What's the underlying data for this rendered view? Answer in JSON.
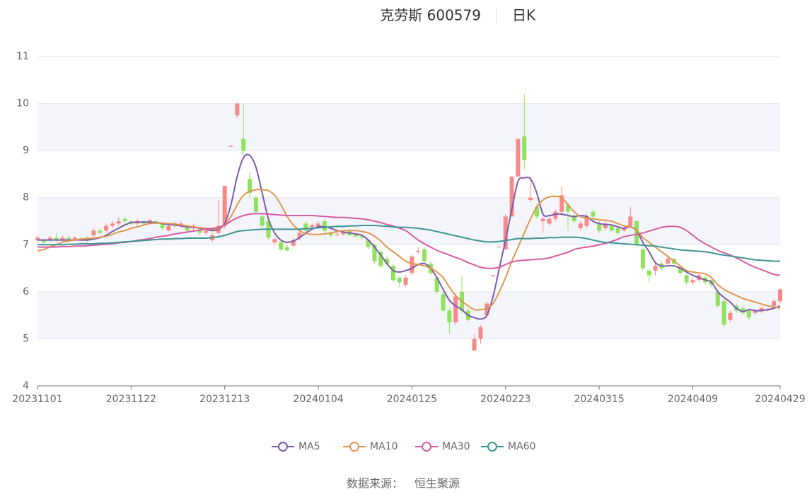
{
  "chart_data": {
    "type": "candlestick",
    "title": "克劳斯 600579",
    "subtitle": "日K",
    "source_label": "数据来源：",
    "source": "恒生聚源",
    "categories": [
      "20231101",
      null,
      null,
      null,
      null,
      null,
      null,
      null,
      null,
      null,
      null,
      null,
      null,
      null,
      null,
      "20231122",
      null,
      null,
      null,
      null,
      null,
      null,
      null,
      null,
      null,
      null,
      null,
      null,
      null,
      null,
      "20231213",
      null,
      null,
      null,
      null,
      null,
      null,
      null,
      null,
      null,
      null,
      null,
      null,
      null,
      null,
      "20240104",
      null,
      null,
      null,
      null,
      null,
      null,
      null,
      null,
      null,
      null,
      null,
      null,
      null,
      null,
      "20240125",
      null,
      null,
      null,
      null,
      null,
      null,
      null,
      null,
      null,
      null,
      null,
      null,
      null,
      null,
      "20240223",
      null,
      null,
      null,
      null,
      null,
      null,
      null,
      null,
      null,
      null,
      null,
      null,
      null,
      null,
      "20240315",
      null,
      null,
      null,
      null,
      null,
      null,
      null,
      null,
      null,
      null,
      null,
      null,
      null,
      null,
      "20240409",
      null,
      null,
      null,
      null,
      null,
      null,
      null,
      null,
      null,
      null,
      null,
      null,
      null,
      "20240429"
    ],
    "candles": [
      [
        7.1,
        7.15,
        7.05,
        7.2
      ],
      [
        7.1,
        7.05,
        7.0,
        7.12
      ],
      [
        7.1,
        7.15,
        7.05,
        7.2
      ],
      [
        7.15,
        7.1,
        7.05,
        7.25
      ],
      [
        7.1,
        7.15,
        7.05,
        7.2
      ],
      [
        7.15,
        7.12,
        7.08,
        7.2
      ],
      [
        7.12,
        7.15,
        7.1,
        7.18
      ],
      [
        7.1,
        7.12,
        7.05,
        7.15
      ],
      [
        7.15,
        7.1,
        7.05,
        7.18
      ],
      [
        7.2,
        7.3,
        7.15,
        7.35
      ],
      [
        7.3,
        7.25,
        7.2,
        7.35
      ],
      [
        7.3,
        7.4,
        7.25,
        7.45
      ],
      [
        7.4,
        7.45,
        7.35,
        7.5
      ],
      [
        7.45,
        7.5,
        7.4,
        7.58
      ],
      [
        7.55,
        7.5,
        7.45,
        7.6
      ],
      [
        7.5,
        7.45,
        7.4,
        7.52
      ],
      [
        7.45,
        7.5,
        7.42,
        7.55
      ],
      [
        7.5,
        7.45,
        7.4,
        7.52
      ],
      [
        7.48,
        7.52,
        7.45,
        7.55
      ],
      [
        7.5,
        7.45,
        7.42,
        7.52
      ],
      [
        7.45,
        7.35,
        7.3,
        7.48
      ],
      [
        7.3,
        7.4,
        7.28,
        7.45
      ],
      [
        7.45,
        7.4,
        7.35,
        7.5
      ],
      [
        7.4,
        7.45,
        7.35,
        7.5
      ],
      [
        7.38,
        7.3,
        7.25,
        7.4
      ],
      [
        7.35,
        7.4,
        7.3,
        7.45
      ],
      [
        7.3,
        7.25,
        7.2,
        7.35
      ],
      [
        7.25,
        7.3,
        7.2,
        7.35
      ],
      [
        7.1,
        7.2,
        7.05,
        7.25
      ],
      [
        7.25,
        7.4,
        7.2,
        7.95
      ],
      [
        7.4,
        8.25,
        7.35,
        8.25
      ],
      [
        9.08,
        9.1,
        9.08,
        9.12
      ],
      [
        9.75,
        10.0,
        9.7,
        10.02
      ],
      [
        9.25,
        9.0,
        8.9,
        10.0
      ],
      [
        8.4,
        8.1,
        8.0,
        8.55
      ],
      [
        8.0,
        7.7,
        7.65,
        8.05
      ],
      [
        7.6,
        7.4,
        7.35,
        7.65
      ],
      [
        7.5,
        7.15,
        7.1,
        7.55
      ],
      [
        7.05,
        7.12,
        7.0,
        7.15
      ],
      [
        7.05,
        6.9,
        6.85,
        7.1
      ],
      [
        6.95,
        6.88,
        6.85,
        7.0
      ],
      [
        6.98,
        7.1,
        6.95,
        7.15
      ],
      [
        7.15,
        7.25,
        7.1,
        7.3
      ],
      [
        7.45,
        7.3,
        7.25,
        7.5
      ],
      [
        7.38,
        7.42,
        7.35,
        7.45
      ],
      [
        7.38,
        7.45,
        7.35,
        7.5
      ],
      [
        7.5,
        7.3,
        7.25,
        7.55
      ],
      [
        7.25,
        7.2,
        7.15,
        7.3
      ],
      [
        7.2,
        7.22,
        7.18,
        7.28
      ],
      [
        7.22,
        7.28,
        7.2,
        7.3
      ],
      [
        7.3,
        7.2,
        7.18,
        7.35
      ],
      [
        7.22,
        7.18,
        7.15,
        7.25
      ],
      [
        7.18,
        7.15,
        7.1,
        7.22
      ],
      [
        7.1,
        6.95,
        6.9,
        7.12
      ],
      [
        7.0,
        6.65,
        6.6,
        7.02
      ],
      [
        6.85,
        6.55,
        6.5,
        6.9
      ],
      [
        6.7,
        6.6,
        6.55,
        6.75
      ],
      [
        6.55,
        6.25,
        6.2,
        6.6
      ],
      [
        6.3,
        6.2,
        6.1,
        6.32
      ],
      [
        6.15,
        6.3,
        6.1,
        6.35
      ],
      [
        6.4,
        6.75,
        6.35,
        6.8
      ],
      [
        6.85,
        6.87,
        6.8,
        6.95
      ],
      [
        6.9,
        6.65,
        6.6,
        6.95
      ],
      [
        6.6,
        6.4,
        6.35,
        6.65
      ],
      [
        6.3,
        6.0,
        5.95,
        6.32
      ],
      [
        5.95,
        5.6,
        5.55,
        6.0
      ],
      [
        5.6,
        5.35,
        5.1,
        5.65
      ],
      [
        5.35,
        5.9,
        5.3,
        5.95
      ],
      [
        6.0,
        5.6,
        5.55,
        6.35
      ],
      [
        5.6,
        5.4,
        5.35,
        5.65
      ],
      [
        4.75,
        5.0,
        4.75,
        5.1
      ],
      [
        5.0,
        5.25,
        4.9,
        5.3
      ],
      [
        5.5,
        5.75,
        5.45,
        5.8
      ],
      [
        6.33,
        6.35,
        6.32,
        6.36
      ],
      [
        6.95,
        6.96,
        6.94,
        6.97
      ],
      [
        6.9,
        7.6,
        6.9,
        7.65
      ],
      [
        7.6,
        8.45,
        7.6,
        8.45
      ],
      [
        8.45,
        9.25,
        8.45,
        9.25
      ],
      [
        9.3,
        8.8,
        8.6,
        10.2
      ],
      [
        7.95,
        8.0,
        7.9,
        8.45
      ],
      [
        7.8,
        7.6,
        7.55,
        7.85
      ],
      [
        7.5,
        7.55,
        7.25,
        7.6
      ],
      [
        7.45,
        7.55,
        7.4,
        7.6
      ],
      [
        7.55,
        7.7,
        7.5,
        7.75
      ],
      [
        7.7,
        8.05,
        7.65,
        8.25
      ],
      [
        7.85,
        7.7,
        7.3,
        7.9
      ],
      [
        7.6,
        7.5,
        7.45,
        7.65
      ],
      [
        7.35,
        7.45,
        7.3,
        7.5
      ],
      [
        7.4,
        7.6,
        7.35,
        7.65
      ],
      [
        7.7,
        7.6,
        7.55,
        7.75
      ],
      [
        7.45,
        7.3,
        7.25,
        7.5
      ],
      [
        7.35,
        7.45,
        7.3,
        7.5
      ],
      [
        7.4,
        7.3,
        7.28,
        7.42
      ],
      [
        7.35,
        7.25,
        7.2,
        7.38
      ],
      [
        7.3,
        7.35,
        7.28,
        7.4
      ],
      [
        7.4,
        7.6,
        7.35,
        7.8
      ],
      [
        7.5,
        7.0,
        6.95,
        7.52
      ],
      [
        6.9,
        6.5,
        6.45,
        6.95
      ],
      [
        6.45,
        6.35,
        6.2,
        6.5
      ],
      [
        6.45,
        6.55,
        6.35,
        6.6
      ],
      [
        6.6,
        6.5,
        6.45,
        6.65
      ],
      [
        6.6,
        6.7,
        6.55,
        6.75
      ],
      [
        6.7,
        6.6,
        6.55,
        6.72
      ],
      [
        6.5,
        6.4,
        6.35,
        6.55
      ],
      [
        6.35,
        6.2,
        6.15,
        6.4
      ],
      [
        6.2,
        6.25,
        6.15,
        6.3
      ],
      [
        6.25,
        6.35,
        6.2,
        6.4
      ],
      [
        6.3,
        6.2,
        6.15,
        6.35
      ],
      [
        6.25,
        6.15,
        6.1,
        6.3
      ],
      [
        6.0,
        5.7,
        5.65,
        6.05
      ],
      [
        5.8,
        5.3,
        5.25,
        5.85
      ],
      [
        5.4,
        5.55,
        5.35,
        5.6
      ],
      [
        5.7,
        5.6,
        5.55,
        5.75
      ],
      [
        5.65,
        5.55,
        5.5,
        5.7
      ],
      [
        5.6,
        5.45,
        5.4,
        5.62
      ],
      [
        5.55,
        5.6,
        5.5,
        5.62
      ],
      [
        5.6,
        5.65,
        5.55,
        5.68
      ],
      [
        5.6,
        5.62,
        5.58,
        5.65
      ],
      [
        5.7,
        5.8,
        5.65,
        5.85
      ],
      [
        5.8,
        6.05,
        5.75,
        6.08
      ]
    ],
    "up_color": "#f78a89",
    "down_color": "#8fe25c",
    "series": [
      {
        "name": "MA5",
        "color": "#7a5caa",
        "values": [
          7.1,
          7.1,
          7.1,
          7.1,
          7.1,
          7.1,
          7.1,
          7.1,
          7.1,
          7.12,
          7.15,
          7.2,
          7.28,
          7.35,
          7.42,
          7.47,
          7.48,
          7.48,
          7.48,
          7.47,
          7.45,
          7.43,
          7.42,
          7.4,
          7.38,
          7.37,
          7.35,
          7.33,
          7.3,
          7.33,
          7.45,
          7.85,
          8.45,
          8.85,
          8.9,
          8.65,
          8.1,
          7.55,
          7.25,
          7.1,
          7.05,
          7.08,
          7.15,
          7.25,
          7.33,
          7.38,
          7.38,
          7.35,
          7.3,
          7.27,
          7.25,
          7.23,
          7.2,
          7.1,
          6.95,
          6.78,
          6.6,
          6.45,
          6.42,
          6.45,
          6.5,
          6.58,
          6.6,
          6.5,
          6.3,
          6.05,
          5.82,
          5.7,
          5.62,
          5.5,
          5.45,
          5.42,
          5.5,
          5.9,
          6.5,
          7.1,
          7.75,
          8.35,
          8.42,
          8.4,
          8.1,
          7.65,
          7.62,
          7.65,
          7.65,
          7.62,
          7.6,
          7.62,
          7.6,
          7.5,
          7.45,
          7.43,
          7.42,
          7.38,
          7.35,
          7.38,
          7.3,
          7.05,
          6.85,
          6.62,
          6.55,
          6.55,
          6.55,
          6.5,
          6.42,
          6.35,
          6.3,
          6.25,
          6.2,
          6.0,
          5.88,
          5.78,
          5.65,
          5.58,
          5.62,
          5.6,
          5.6,
          5.62,
          5.65,
          5.7
        ]
      },
      {
        "name": "MA10",
        "color": "#e0964f",
        "values": [
          6.87,
          6.9,
          6.95,
          7.0,
          7.05,
          7.08,
          7.1,
          7.12,
          7.13,
          7.14,
          7.16,
          7.18,
          7.22,
          7.27,
          7.3,
          7.35,
          7.38,
          7.42,
          7.45,
          7.46,
          7.46,
          7.45,
          7.44,
          7.42,
          7.4,
          7.38,
          7.36,
          7.35,
          7.33,
          7.35,
          7.42,
          7.6,
          7.85,
          8.05,
          8.13,
          8.17,
          8.17,
          8.15,
          8.05,
          7.85,
          7.6,
          7.42,
          7.3,
          7.24,
          7.22,
          7.22,
          7.23,
          7.25,
          7.28,
          7.3,
          7.3,
          7.3,
          7.28,
          7.25,
          7.18,
          7.08,
          6.95,
          6.85,
          6.75,
          6.65,
          6.6,
          6.58,
          6.55,
          6.5,
          6.42,
          6.3,
          6.1,
          5.92,
          5.8,
          5.7,
          5.62,
          5.62,
          5.65,
          5.75,
          6.0,
          6.3,
          6.65,
          6.95,
          7.25,
          7.55,
          7.8,
          7.95,
          8.02,
          8.03,
          8.0,
          7.85,
          7.7,
          7.6,
          7.57,
          7.55,
          7.53,
          7.52,
          7.5,
          7.45,
          7.4,
          7.38,
          7.3,
          7.15,
          7.05,
          6.95,
          6.85,
          6.75,
          6.65,
          6.55,
          6.45,
          6.42,
          6.4,
          6.38,
          6.3,
          6.15,
          6.05,
          5.98,
          5.92,
          5.86,
          5.82,
          5.78,
          5.74,
          5.7,
          5.68,
          5.65
        ]
      },
      {
        "name": "MA30",
        "color": "#d45ca2",
        "values": [
          6.95,
          6.95,
          6.95,
          6.95,
          6.96,
          6.96,
          6.97,
          6.97,
          6.98,
          6.99,
          7.0,
          7.01,
          7.02,
          7.04,
          7.05,
          7.07,
          7.09,
          7.11,
          7.13,
          7.16,
          7.18,
          7.2,
          7.23,
          7.25,
          7.27,
          7.29,
          7.31,
          7.33,
          7.35,
          7.37,
          7.42,
          7.5,
          7.57,
          7.62,
          7.65,
          7.66,
          7.66,
          7.65,
          7.64,
          7.63,
          7.62,
          7.62,
          7.62,
          7.62,
          7.62,
          7.61,
          7.6,
          7.59,
          7.58,
          7.58,
          7.57,
          7.56,
          7.55,
          7.53,
          7.5,
          7.47,
          7.43,
          7.4,
          7.35,
          7.3,
          7.2,
          7.1,
          7.02,
          6.95,
          6.88,
          6.83,
          6.78,
          6.73,
          6.68,
          6.62,
          6.57,
          6.52,
          6.5,
          6.5,
          6.52,
          6.58,
          6.63,
          6.66,
          6.67,
          6.68,
          6.69,
          6.7,
          6.72,
          6.76,
          6.8,
          6.84,
          6.9,
          6.93,
          6.95,
          6.97,
          7.0,
          7.03,
          7.07,
          7.12,
          7.17,
          7.2,
          7.22,
          7.25,
          7.29,
          7.33,
          7.37,
          7.39,
          7.39,
          7.37,
          7.3,
          7.2,
          7.1,
          7.02,
          6.95,
          6.88,
          6.83,
          6.78,
          6.72,
          6.65,
          6.58,
          6.52,
          6.47,
          6.42,
          6.37,
          6.35
        ]
      },
      {
        "name": "MA60",
        "color": "#3f9494",
        "values": [
          7.0,
          7.0,
          7.0,
          7.0,
          7.0,
          7.01,
          7.01,
          7.02,
          7.02,
          7.02,
          7.03,
          7.03,
          7.04,
          7.05,
          7.06,
          7.07,
          7.08,
          7.09,
          7.1,
          7.11,
          7.12,
          7.12,
          7.13,
          7.13,
          7.14,
          7.14,
          7.14,
          7.14,
          7.15,
          7.17,
          7.2,
          7.24,
          7.28,
          7.3,
          7.31,
          7.32,
          7.33,
          7.33,
          7.33,
          7.33,
          7.33,
          7.33,
          7.33,
          7.34,
          7.35,
          7.36,
          7.37,
          7.38,
          7.39,
          7.39,
          7.4,
          7.4,
          7.41,
          7.41,
          7.41,
          7.4,
          7.39,
          7.38,
          7.37,
          7.37,
          7.36,
          7.35,
          7.33,
          7.31,
          7.28,
          7.25,
          7.22,
          7.19,
          7.16,
          7.13,
          7.1,
          7.08,
          7.06,
          7.06,
          7.07,
          7.09,
          7.11,
          7.13,
          7.13,
          7.13,
          7.14,
          7.14,
          7.15,
          7.15,
          7.16,
          7.16,
          7.16,
          7.15,
          7.13,
          7.1,
          7.07,
          7.05,
          7.04,
          7.03,
          7.02,
          7.01,
          7.0,
          6.99,
          6.98,
          6.97,
          6.95,
          6.93,
          6.91,
          6.89,
          6.88,
          6.87,
          6.86,
          6.85,
          6.83,
          6.8,
          6.78,
          6.76,
          6.74,
          6.72,
          6.7,
          6.68,
          6.67,
          6.66,
          6.65,
          6.65
        ]
      }
    ],
    "ylim": [
      4,
      11
    ],
    "yticks": [
      4,
      5,
      6,
      7,
      8,
      9,
      10,
      11
    ],
    "grid": true,
    "split_area": true,
    "legend": "bottom"
  }
}
